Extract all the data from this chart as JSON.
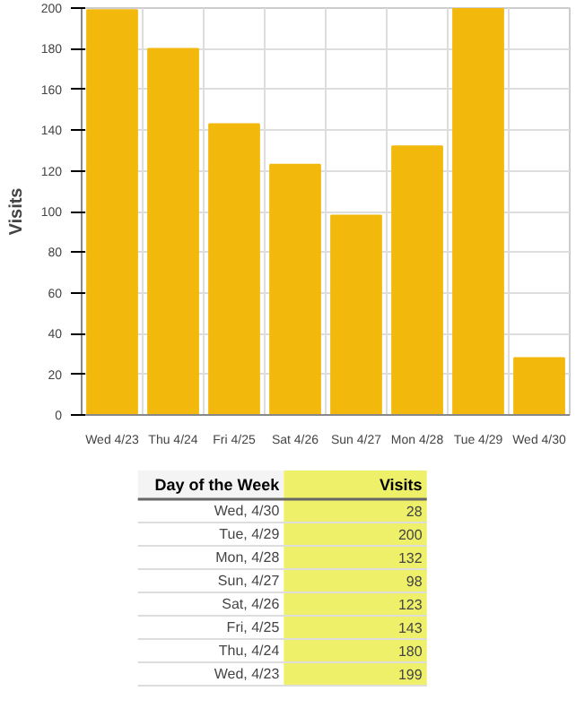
{
  "chart_data": [
    {
      "type": "bar",
      "ylabel": "Visits",
      "categories": [
        "Wed 4/23",
        "Thu 4/24",
        "Fri 4/25",
        "Sat 4/26",
        "Sun 4/27",
        "Mon 4/28",
        "Tue 4/29",
        "Wed 4/30"
      ],
      "values": [
        199,
        180,
        143,
        123,
        98,
        132,
        200,
        28
      ],
      "color": "#f2b90c",
      "ylim": [
        0,
        200
      ],
      "yticks": [
        0,
        20,
        40,
        60,
        80,
        100,
        120,
        140,
        160,
        180,
        200
      ],
      "grid": true
    },
    {
      "type": "other",
      "annotations": [
        "Day of the Week",
        "Visits",
        "Wed, 4/30",
        "28",
        "Tue, 4/29",
        "200",
        "Mon, 4/28",
        "132",
        "Sun, 4/27",
        "98",
        "Sat, 4/26",
        "123",
        "Fri, 4/25",
        "143",
        "Thu, 4/24",
        "180",
        "Wed, 4/23",
        "199"
      ]
    }
  ]
}
